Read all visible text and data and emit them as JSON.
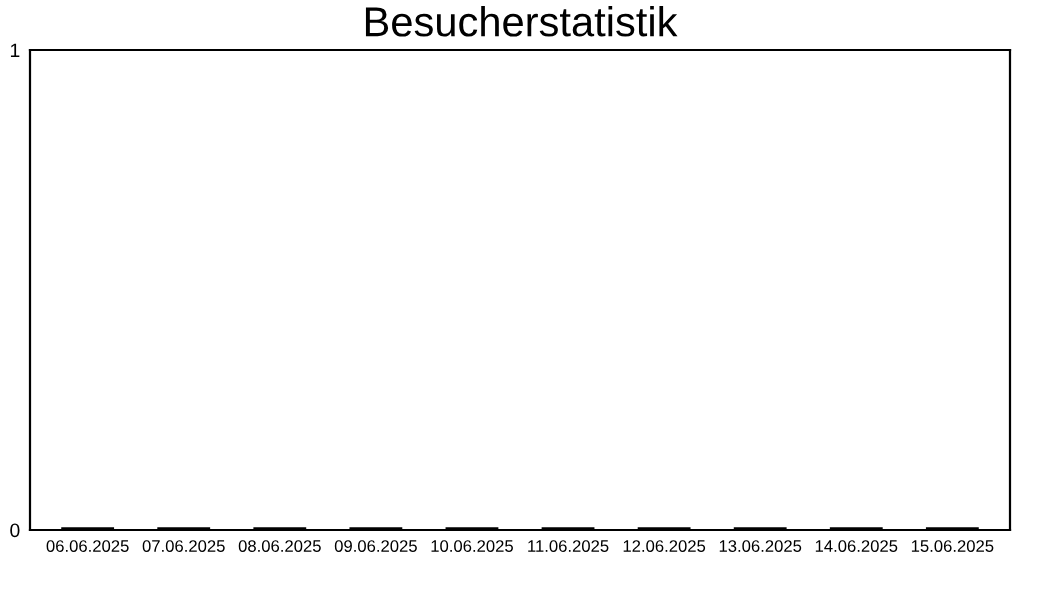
{
  "chart_data": {
    "type": "bar",
    "title": "Besucherstatistik",
    "categories": [
      "06.06.2025",
      "07.06.2025",
      "08.06.2025",
      "09.06.2025",
      "10.06.2025",
      "11.06.2025",
      "12.06.2025",
      "13.06.2025",
      "14.06.2025",
      "15.06.2025"
    ],
    "values": [
      0,
      0,
      0,
      0,
      0,
      0,
      0,
      0,
      0,
      0
    ],
    "color": "#000000",
    "ylim": [
      0,
      1
    ],
    "yticks": [
      0,
      1
    ],
    "grid": false,
    "legend": false
  }
}
